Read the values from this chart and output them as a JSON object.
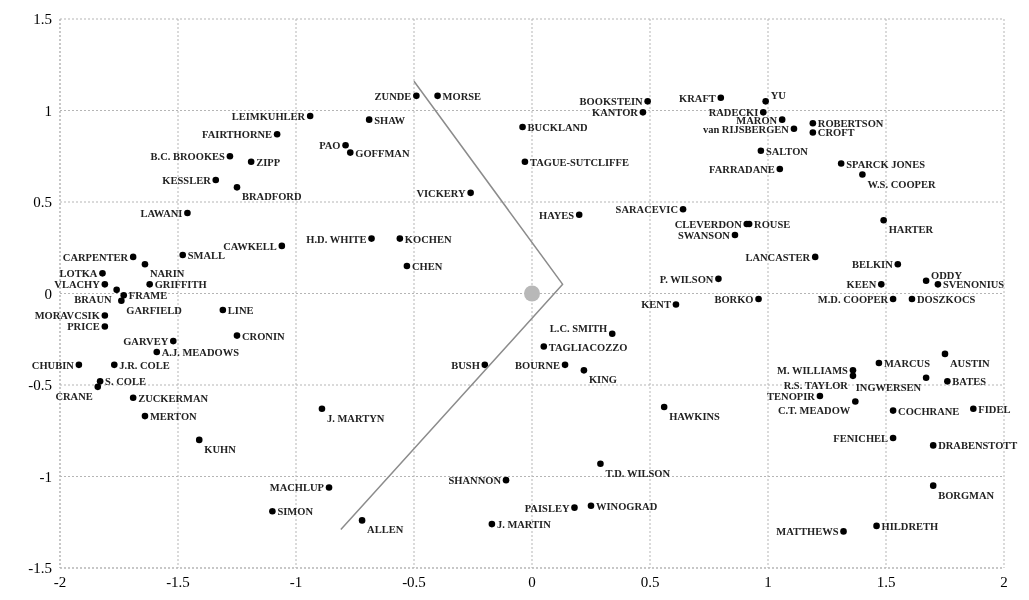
{
  "chart_data": {
    "type": "scatter",
    "xlim": [
      -2,
      2
    ],
    "ylim": [
      -1.5,
      1.5
    ],
    "xticks": [
      -2,
      -1.5,
      -1,
      -0.5,
      0,
      0.5,
      1,
      1.5,
      2
    ],
    "yticks": [
      -1.5,
      -1,
      -0.5,
      0,
      0.5,
      1,
      1.5
    ],
    "grid": true,
    "series": [
      {
        "marker": "circle",
        "color": "#000000",
        "x": [
          -0.94,
          -1.08,
          -1.28,
          -1.19,
          -1.34,
          -1.25,
          -1.46,
          -1.06,
          -1.48,
          -1.69,
          -1.64,
          -1.82,
          -1.81,
          -1.62,
          -1.76,
          -1.73,
          -1.74,
          -0.68,
          -1.81,
          -1.81,
          -1.31,
          -1.25,
          -1.52,
          -1.59,
          -1.92,
          -1.77,
          -1.83,
          -1.84,
          -1.69,
          -1.64,
          -1.41,
          -0.89,
          -0.86,
          -1.1,
          -0.72,
          -0.49,
          -0.4,
          -0.69,
          -0.79,
          -0.77,
          -0.26,
          -0.56,
          -0.53,
          -0.04,
          -0.03,
          0.49,
          0.47,
          0.2,
          0.64,
          0.79,
          0.61,
          0.8,
          0.99,
          0.98,
          1.06,
          1.11,
          1.19,
          1.19,
          0.97,
          1.05,
          1.31,
          1.4,
          1.49,
          0.91,
          0.92,
          0.86,
          1.2,
          1.55,
          1.67,
          1.72,
          1.48,
          0.96,
          1.53,
          1.61,
          1.75,
          1.47,
          1.36,
          1.36,
          1.67,
          1.76,
          1.22,
          1.37,
          1.53,
          1.87,
          1.53,
          1.7,
          1.7,
          1.46,
          1.32,
          0.56,
          0.34,
          0.05,
          -0.2,
          0.14,
          0.22,
          0.29,
          -0.11,
          0.18,
          0.25,
          -0.17
        ],
        "values": [
          0.97,
          0.87,
          0.75,
          0.72,
          0.62,
          0.58,
          0.44,
          0.26,
          0.21,
          0.2,
          0.16,
          0.11,
          0.05,
          0.05,
          0.02,
          -0.01,
          -0.04,
          0.3,
          -0.12,
          -0.18,
          -0.09,
          -0.23,
          -0.26,
          -0.32,
          -0.39,
          -0.39,
          -0.48,
          -0.51,
          -0.57,
          -0.67,
          -0.8,
          -0.63,
          -1.06,
          -1.19,
          -1.24,
          1.08,
          1.08,
          0.95,
          0.81,
          0.77,
          0.55,
          0.3,
          0.15,
          0.91,
          0.72,
          1.05,
          0.99,
          0.43,
          0.46,
          0.08,
          -0.06,
          1.07,
          1.05,
          0.99,
          0.95,
          0.9,
          0.93,
          0.88,
          0.78,
          0.68,
          0.71,
          0.65,
          0.4,
          0.38,
          0.38,
          0.32,
          0.2,
          0.16,
          0.07,
          0.05,
          0.05,
          -0.03,
          -0.03,
          -0.03,
          -0.33,
          -0.38,
          -0.42,
          -0.45,
          -0.46,
          -0.48,
          -0.56,
          -0.59,
          -0.64,
          -0.63,
          -0.79,
          -0.83,
          -1.05,
          -1.27,
          -1.3,
          -0.62,
          -0.22,
          -0.29,
          -0.39,
          -0.39,
          -0.42,
          -0.93,
          -1.02,
          -1.17,
          -1.16,
          -1.26
        ]
      },
      {
        "marker": "circle",
        "color": "#b8b8b8",
        "x": [
          0
        ],
        "values": [
          0
        ]
      },
      {
        "type": "line",
        "marker": "none",
        "color": "#8c8c8c",
        "x": [
          -0.5,
          0.13,
          -0.81
        ],
        "values": [
          1.16,
          0.05,
          -1.29
        ]
      }
    ],
    "annotations": [
      {
        "text": "LEIMKUHLER",
        "x": -0.94,
        "y": 0.97
      },
      {
        "text": "FAIRTHORNE",
        "x": -1.08,
        "y": 0.87
      },
      {
        "text": "B.C. BROOKES",
        "x": -1.28,
        "y": 0.75
      },
      {
        "text": "ZIPP",
        "x": -1.19,
        "y": 0.72
      },
      {
        "text": "KESSLER",
        "x": -1.34,
        "y": 0.62
      },
      {
        "text": "BRADFORD",
        "x": -1.25,
        "y": 0.58
      },
      {
        "text": "LAWANI",
        "x": -1.46,
        "y": 0.44
      },
      {
        "text": "CAWKELL",
        "x": -1.06,
        "y": 0.26
      },
      {
        "text": "SMALL",
        "x": -1.48,
        "y": 0.21
      },
      {
        "text": "CARPENTER",
        "x": -1.69,
        "y": 0.2
      },
      {
        "text": "NARIN",
        "x": -1.64,
        "y": 0.16
      },
      {
        "text": "LOTKA",
        "x": -1.82,
        "y": 0.11
      },
      {
        "text": "VLACHY",
        "x": -1.81,
        "y": 0.05
      },
      {
        "text": "GRIFFITH",
        "x": -1.62,
        "y": 0.05
      },
      {
        "text": "BRAUN",
        "x": -1.76,
        "y": 0.02
      },
      {
        "text": "FRAME",
        "x": -1.73,
        "y": -0.01
      },
      {
        "text": "GARFIELD",
        "x": -1.74,
        "y": -0.04
      },
      {
        "text": "H.D. WHITE",
        "x": -0.68,
        "y": 0.3
      },
      {
        "text": "MORAVCSIK",
        "x": -1.81,
        "y": -0.12
      },
      {
        "text": "PRICE",
        "x": -1.81,
        "y": -0.18
      },
      {
        "text": "LINE",
        "x": -1.31,
        "y": -0.09
      },
      {
        "text": "CRONIN",
        "x": -1.25,
        "y": -0.23
      },
      {
        "text": "GARVEY",
        "x": -1.52,
        "y": -0.26
      },
      {
        "text": "A.J. MEADOWS",
        "x": -1.59,
        "y": -0.32
      },
      {
        "text": "CHUBIN",
        "x": -1.92,
        "y": -0.39
      },
      {
        "text": "J.R. COLE",
        "x": -1.77,
        "y": -0.39
      },
      {
        "text": "S. COLE",
        "x": -1.83,
        "y": -0.48
      },
      {
        "text": "CRANE",
        "x": -1.84,
        "y": -0.51
      },
      {
        "text": "ZUCKERMAN",
        "x": -1.69,
        "y": -0.57
      },
      {
        "text": "MERTON",
        "x": -1.64,
        "y": -0.67
      },
      {
        "text": "KUHN",
        "x": -1.41,
        "y": -0.8
      },
      {
        "text": "J. MARTYN",
        "x": -0.89,
        "y": -0.63
      },
      {
        "text": "MACHLUP",
        "x": -0.86,
        "y": -1.06
      },
      {
        "text": "SIMON",
        "x": -1.1,
        "y": -1.19
      },
      {
        "text": "ALLEN",
        "x": -0.72,
        "y": -1.24
      },
      {
        "text": "ZUNDE",
        "x": -0.49,
        "y": 1.08
      },
      {
        "text": "MORSE",
        "x": -0.4,
        "y": 1.08
      },
      {
        "text": "SHAW",
        "x": -0.69,
        "y": 0.95
      },
      {
        "text": "PAO",
        "x": -0.79,
        "y": 0.81
      },
      {
        "text": "GOFFMAN",
        "x": -0.77,
        "y": 0.77
      },
      {
        "text": "VICKERY",
        "x": -0.26,
        "y": 0.55
      },
      {
        "text": "KOCHEN",
        "x": -0.56,
        "y": 0.3
      },
      {
        "text": "CHEN",
        "x": -0.53,
        "y": 0.15
      },
      {
        "text": "BUCKLAND",
        "x": -0.04,
        "y": 0.91
      },
      {
        "text": "TAGUE-SUTCLIFFE",
        "x": -0.03,
        "y": 0.72
      },
      {
        "text": "BOOKSTEIN",
        "x": 0.49,
        "y": 1.05
      },
      {
        "text": "KANTOR",
        "x": 0.47,
        "y": 0.99
      },
      {
        "text": "HAYES",
        "x": 0.2,
        "y": 0.43
      },
      {
        "text": "SARACEVIC",
        "x": 0.64,
        "y": 0.46
      },
      {
        "text": "P. WILSON",
        "x": 0.79,
        "y": 0.08
      },
      {
        "text": "KENT",
        "x": 0.61,
        "y": -0.06
      },
      {
        "text": "KRAFT",
        "x": 0.8,
        "y": 1.07
      },
      {
        "text": "YU",
        "x": 0.99,
        "y": 1.05
      },
      {
        "text": "RADECKI",
        "x": 0.98,
        "y": 0.99
      },
      {
        "text": "MARON",
        "x": 1.06,
        "y": 0.95
      },
      {
        "text": "van RIJSBERGEN",
        "x": 1.11,
        "y": 0.9
      },
      {
        "text": "ROBERTSON",
        "x": 1.19,
        "y": 0.93
      },
      {
        "text": "CROFT",
        "x": 1.19,
        "y": 0.88
      },
      {
        "text": "SALTON",
        "x": 0.97,
        "y": 0.78
      },
      {
        "text": "FARRADANE",
        "x": 1.05,
        "y": 0.68
      },
      {
        "text": "SPARCK JONES",
        "x": 1.31,
        "y": 0.71
      },
      {
        "text": "W.S. COOPER",
        "x": 1.4,
        "y": 0.65
      },
      {
        "text": "HARTER",
        "x": 1.49,
        "y": 0.4
      },
      {
        "text": "CLEVERDON",
        "x": 0.91,
        "y": 0.38
      },
      {
        "text": "ROUSE",
        "x": 0.92,
        "y": 0.38
      },
      {
        "text": "SWANSON",
        "x": 0.86,
        "y": 0.32
      },
      {
        "text": "LANCASTER",
        "x": 1.2,
        "y": 0.2
      },
      {
        "text": "BELKIN",
        "x": 1.55,
        "y": 0.16
      },
      {
        "text": "ODDY",
        "x": 1.67,
        "y": 0.07
      },
      {
        "text": "SVENONIUS",
        "x": 1.72,
        "y": 0.05
      },
      {
        "text": "KEEN",
        "x": 1.48,
        "y": 0.05
      },
      {
        "text": "BORKO",
        "x": 0.96,
        "y": -0.03
      },
      {
        "text": "M.D. COOPER",
        "x": 1.53,
        "y": -0.03
      },
      {
        "text": "DOSZKOCS",
        "x": 1.61,
        "y": -0.03
      },
      {
        "text": "AUSTIN",
        "x": 1.75,
        "y": -0.33
      },
      {
        "text": "MARCUS",
        "x": 1.47,
        "y": -0.38
      },
      {
        "text": "M. WILLIAMS",
        "x": 1.36,
        "y": -0.42
      },
      {
        "text": "R.S. TAYLOR",
        "x": 1.36,
        "y": -0.45
      },
      {
        "text": "INGWERSEN",
        "x": 1.67,
        "y": -0.46
      },
      {
        "text": "BATES",
        "x": 1.76,
        "y": -0.48
      },
      {
        "text": "TENOPIR",
        "x": 1.22,
        "y": -0.56
      },
      {
        "text": "C.T. MEADOW",
        "x": 1.37,
        "y": -0.59
      },
      {
        "text": "COCHRANE",
        "x": 1.53,
        "y": -0.64
      },
      {
        "text": "FIDEL",
        "x": 1.87,
        "y": -0.63
      },
      {
        "text": "FENICHEL",
        "x": 1.53,
        "y": -0.79
      },
      {
        "text": "DRABENSTOTT",
        "x": 1.7,
        "y": -0.83
      },
      {
        "text": "BORGMAN",
        "x": 1.7,
        "y": -1.05
      },
      {
        "text": "HILDRETH",
        "x": 1.46,
        "y": -1.27
      },
      {
        "text": "MATTHEWS",
        "x": 1.32,
        "y": -1.3
      },
      {
        "text": "HAWKINS",
        "x": 0.56,
        "y": -0.62
      },
      {
        "text": "L.C. SMITH",
        "x": 0.34,
        "y": -0.22
      },
      {
        "text": "TAGLIACOZZO",
        "x": 0.05,
        "y": -0.29
      },
      {
        "text": "BUSH",
        "x": -0.2,
        "y": -0.39
      },
      {
        "text": "BOURNE",
        "x": 0.14,
        "y": -0.39
      },
      {
        "text": "KING",
        "x": 0.22,
        "y": -0.42
      },
      {
        "text": "T.D. WILSON",
        "x": 0.29,
        "y": -0.93
      },
      {
        "text": "SHANNON",
        "x": -0.11,
        "y": -1.02
      },
      {
        "text": "PAISLEY",
        "x": 0.18,
        "y": -1.17
      },
      {
        "text": "WINOGRAD",
        "x": 0.25,
        "y": -1.16
      },
      {
        "text": "J. MARTIN",
        "x": -0.17,
        "y": -1.26
      }
    ]
  }
}
